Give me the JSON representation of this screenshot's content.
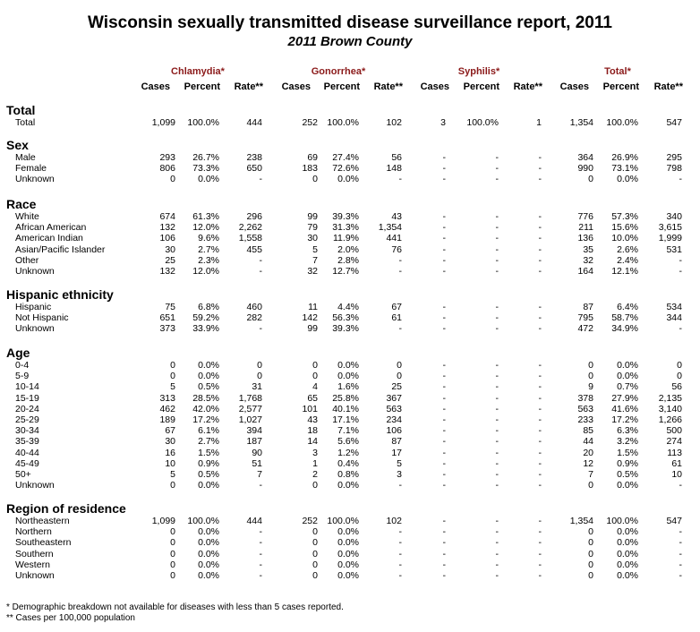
{
  "title": "Wisconsin sexually transmitted disease surveillance report, 2011",
  "subtitle": "2011 Brown County",
  "diseases": [
    "Chlamydia*",
    "Gonorrhea*",
    "Syphilis*",
    "Total*"
  ],
  "col_headers": [
    "Cases",
    "Percent",
    "Rate**",
    "Cases",
    "Percent",
    "Rate**",
    "Cases",
    "Percent",
    "Rate**",
    "Cases",
    "Percent",
    "Rate**"
  ],
  "sections": [
    {
      "title": "Total",
      "rows": [
        {
          "label": "Total",
          "values": [
            "1,099",
            "100.0%",
            "444",
            "252",
            "100.0%",
            "102",
            "3",
            "100.0%",
            "1",
            "1,354",
            "100.0%",
            "547"
          ]
        }
      ]
    },
    {
      "title": "Sex",
      "rows": [
        {
          "label": "Male",
          "values": [
            "293",
            "26.7%",
            "238",
            "69",
            "27.4%",
            "56",
            "-",
            "-",
            "-",
            "364",
            "26.9%",
            "295"
          ]
        },
        {
          "label": "Female",
          "values": [
            "806",
            "73.3%",
            "650",
            "183",
            "72.6%",
            "148",
            "-",
            "-",
            "-",
            "990",
            "73.1%",
            "798"
          ]
        },
        {
          "label": "Unknown",
          "values": [
            "0",
            "0.0%",
            "-",
            "0",
            "0.0%",
            "-",
            "-",
            "-",
            "-",
            "0",
            "0.0%",
            "-"
          ]
        }
      ]
    },
    {
      "title": "Race",
      "rows": [
        {
          "label": "White",
          "values": [
            "674",
            "61.3%",
            "296",
            "99",
            "39.3%",
            "43",
            "-",
            "-",
            "-",
            "776",
            "57.3%",
            "340"
          ]
        },
        {
          "label": "African American",
          "values": [
            "132",
            "12.0%",
            "2,262",
            "79",
            "31.3%",
            "1,354",
            "-",
            "-",
            "-",
            "211",
            "15.6%",
            "3,615"
          ]
        },
        {
          "label": "American Indian",
          "values": [
            "106",
            "9.6%",
            "1,558",
            "30",
            "11.9%",
            "441",
            "-",
            "-",
            "-",
            "136",
            "10.0%",
            "1,999"
          ]
        },
        {
          "label": "Asian/Pacific Islander",
          "values": [
            "30",
            "2.7%",
            "455",
            "5",
            "2.0%",
            "76",
            "-",
            "-",
            "-",
            "35",
            "2.6%",
            "531"
          ]
        },
        {
          "label": "Other",
          "values": [
            "25",
            "2.3%",
            "-",
            "7",
            "2.8%",
            "-",
            "-",
            "-",
            "-",
            "32",
            "2.4%",
            "-"
          ]
        },
        {
          "label": "Unknown",
          "values": [
            "132",
            "12.0%",
            "-",
            "32",
            "12.7%",
            "-",
            "-",
            "-",
            "-",
            "164",
            "12.1%",
            "-"
          ]
        }
      ]
    },
    {
      "title": "Hispanic ethnicity",
      "rows": [
        {
          "label": "Hispanic",
          "values": [
            "75",
            "6.8%",
            "460",
            "11",
            "4.4%",
            "67",
            "-",
            "-",
            "-",
            "87",
            "6.4%",
            "534"
          ]
        },
        {
          "label": "Not Hispanic",
          "values": [
            "651",
            "59.2%",
            "282",
            "142",
            "56.3%",
            "61",
            "-",
            "-",
            "-",
            "795",
            "58.7%",
            "344"
          ]
        },
        {
          "label": "Unknown",
          "values": [
            "373",
            "33.9%",
            "-",
            "99",
            "39.3%",
            "-",
            "-",
            "-",
            "-",
            "472",
            "34.9%",
            "-"
          ]
        }
      ]
    },
    {
      "title": "Age",
      "rows": [
        {
          "label": "0-4",
          "values": [
            "0",
            "0.0%",
            "0",
            "0",
            "0.0%",
            "0",
            "-",
            "-",
            "-",
            "0",
            "0.0%",
            "0"
          ]
        },
        {
          "label": "5-9",
          "values": [
            "0",
            "0.0%",
            "0",
            "0",
            "0.0%",
            "0",
            "-",
            "-",
            "-",
            "0",
            "0.0%",
            "0"
          ]
        },
        {
          "label": "10-14",
          "values": [
            "5",
            "0.5%",
            "31",
            "4",
            "1.6%",
            "25",
            "-",
            "-",
            "-",
            "9",
            "0.7%",
            "56"
          ]
        },
        {
          "label": "15-19",
          "values": [
            "313",
            "28.5%",
            "1,768",
            "65",
            "25.8%",
            "367",
            "-",
            "-",
            "-",
            "378",
            "27.9%",
            "2,135"
          ]
        },
        {
          "label": "20-24",
          "values": [
            "462",
            "42.0%",
            "2,577",
            "101",
            "40.1%",
            "563",
            "-",
            "-",
            "-",
            "563",
            "41.6%",
            "3,140"
          ]
        },
        {
          "label": "25-29",
          "values": [
            "189",
            "17.2%",
            "1,027",
            "43",
            "17.1%",
            "234",
            "-",
            "-",
            "-",
            "233",
            "17.2%",
            "1,266"
          ]
        },
        {
          "label": "30-34",
          "values": [
            "67",
            "6.1%",
            "394",
            "18",
            "7.1%",
            "106",
            "-",
            "-",
            "-",
            "85",
            "6.3%",
            "500"
          ]
        },
        {
          "label": "35-39",
          "values": [
            "30",
            "2.7%",
            "187",
            "14",
            "5.6%",
            "87",
            "-",
            "-",
            "-",
            "44",
            "3.2%",
            "274"
          ]
        },
        {
          "label": "40-44",
          "values": [
            "16",
            "1.5%",
            "90",
            "3",
            "1.2%",
            "17",
            "-",
            "-",
            "-",
            "20",
            "1.5%",
            "113"
          ]
        },
        {
          "label": "45-49",
          "values": [
            "10",
            "0.9%",
            "51",
            "1",
            "0.4%",
            "5",
            "-",
            "-",
            "-",
            "12",
            "0.9%",
            "61"
          ]
        },
        {
          "label": "50+",
          "values": [
            "5",
            "0.5%",
            "7",
            "2",
            "0.8%",
            "3",
            "-",
            "-",
            "-",
            "7",
            "0.5%",
            "10"
          ]
        },
        {
          "label": "Unknown",
          "values": [
            "0",
            "0.0%",
            "-",
            "0",
            "0.0%",
            "-",
            "-",
            "-",
            "-",
            "0",
            "0.0%",
            "-"
          ]
        }
      ]
    },
    {
      "title": "Region of residence",
      "rows": [
        {
          "label": "Northeastern",
          "values": [
            "1,099",
            "100.0%",
            "444",
            "252",
            "100.0%",
            "102",
            "-",
            "-",
            "-",
            "1,354",
            "100.0%",
            "547"
          ]
        },
        {
          "label": "Northern",
          "values": [
            "0",
            "0.0%",
            "-",
            "0",
            "0.0%",
            "-",
            "-",
            "-",
            "-",
            "0",
            "0.0%",
            "-"
          ]
        },
        {
          "label": "Southeastern",
          "values": [
            "0",
            "0.0%",
            "-",
            "0",
            "0.0%",
            "-",
            "-",
            "-",
            "-",
            "0",
            "0.0%",
            "-"
          ]
        },
        {
          "label": "Southern",
          "values": [
            "0",
            "0.0%",
            "-",
            "0",
            "0.0%",
            "-",
            "-",
            "-",
            "-",
            "0",
            "0.0%",
            "-"
          ]
        },
        {
          "label": "Western",
          "values": [
            "0",
            "0.0%",
            "-",
            "0",
            "0.0%",
            "-",
            "-",
            "-",
            "-",
            "0",
            "0.0%",
            "-"
          ]
        },
        {
          "label": "Unknown",
          "values": [
            "0",
            "0.0%",
            "-",
            "0",
            "0.0%",
            "-",
            "-",
            "-",
            "-",
            "0",
            "0.0%",
            "-"
          ]
        }
      ]
    }
  ],
  "footnotes": [
    "* Demographic breakdown not available for diseases with less than 5 cases reported.",
    "** Cases per 100,000 population"
  ]
}
